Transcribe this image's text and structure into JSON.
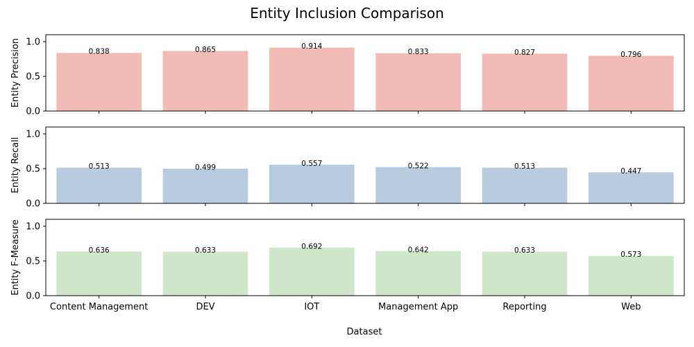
{
  "chart_data": {
    "type": "bar",
    "title": "Entity Inclusion Comparison",
    "xlabel": "Dataset",
    "categories": [
      "Content Management",
      "DEV",
      "IOT",
      "Management App",
      "Reporting",
      "Web"
    ],
    "ylim": [
      0,
      1.1
    ],
    "yticks": [
      0.0,
      0.5,
      1.0
    ],
    "grid": false,
    "panels": [
      {
        "ylabel": "Entity Precision",
        "color": "#f1bbb8",
        "values": [
          0.838,
          0.865,
          0.914,
          0.833,
          0.827,
          0.796
        ]
      },
      {
        "ylabel": "Entity Recall",
        "color": "#b8cbdf",
        "values": [
          0.513,
          0.499,
          0.557,
          0.522,
          0.513,
          0.447
        ]
      },
      {
        "ylabel": "Entity F-Measure",
        "color": "#cfe6cb",
        "values": [
          0.636,
          0.633,
          0.692,
          0.642,
          0.633,
          0.573
        ]
      }
    ]
  }
}
